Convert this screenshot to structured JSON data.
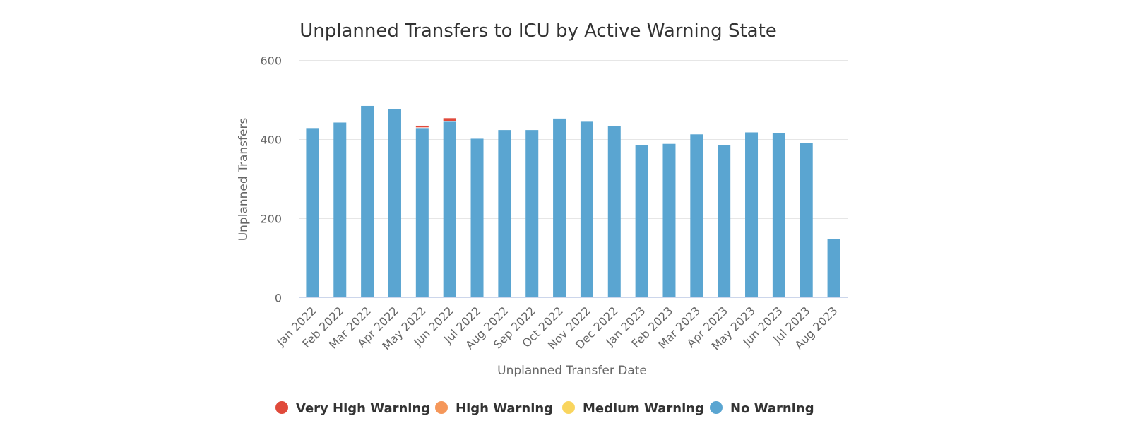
{
  "chart_data": {
    "type": "bar",
    "stacked": true,
    "title": "Unplanned Transfers to ICU by Active Warning State",
    "xlabel": "Unplanned Transfer Date",
    "ylabel": "Unplanned Transfers",
    "ylim": [
      0,
      600
    ],
    "yticks": [
      0,
      200,
      400,
      600
    ],
    "grid": true,
    "legend_position": "bottom",
    "categories": [
      "Jan 2022",
      "Feb 2022",
      "Mar 2022",
      "Apr 2022",
      "May 2022",
      "Jun 2022",
      "Jul 2022",
      "Aug 2022",
      "Sep 2022",
      "Oct 2022",
      "Nov 2022",
      "Dec 2022",
      "Jan 2023",
      "Feb 2023",
      "Mar 2023",
      "Apr 2023",
      "May 2023",
      "Jun 2023",
      "Jul 2023",
      "Aug 2023"
    ],
    "series": [
      {
        "name": "No Warning",
        "color": "#5aa5d1",
        "values": [
          428,
          442,
          484,
          476,
          428,
          444,
          401,
          423,
          423,
          452,
          444,
          433,
          385,
          388,
          412,
          385,
          417,
          415,
          390,
          147
        ]
      },
      {
        "name": "Medium Warning",
        "color": "#f9d55e",
        "values": [
          0,
          0,
          0,
          0,
          0,
          0,
          0,
          0,
          0,
          0,
          0,
          0,
          0,
          0,
          0,
          0,
          0,
          0,
          0,
          0
        ]
      },
      {
        "name": "High Warning",
        "color": "#f5975a",
        "values": [
          0,
          0,
          0,
          0,
          0,
          0,
          0,
          0,
          0,
          0,
          0,
          0,
          0,
          0,
          0,
          0,
          0,
          0,
          0,
          0
        ]
      },
      {
        "name": "Very High Warning",
        "color": "#e04a3b",
        "values": [
          0,
          0,
          0,
          0,
          6,
          9,
          0,
          0,
          0,
          0,
          0,
          0,
          0,
          0,
          0,
          0,
          0,
          0,
          0,
          0
        ]
      }
    ],
    "legend": [
      {
        "name": "Very High Warning",
        "color": "#e04a3b"
      },
      {
        "name": "High Warning",
        "color": "#f5975a"
      },
      {
        "name": "Medium Warning",
        "color": "#f9d55e"
      },
      {
        "name": "No Warning",
        "color": "#5aa5d1"
      }
    ]
  }
}
